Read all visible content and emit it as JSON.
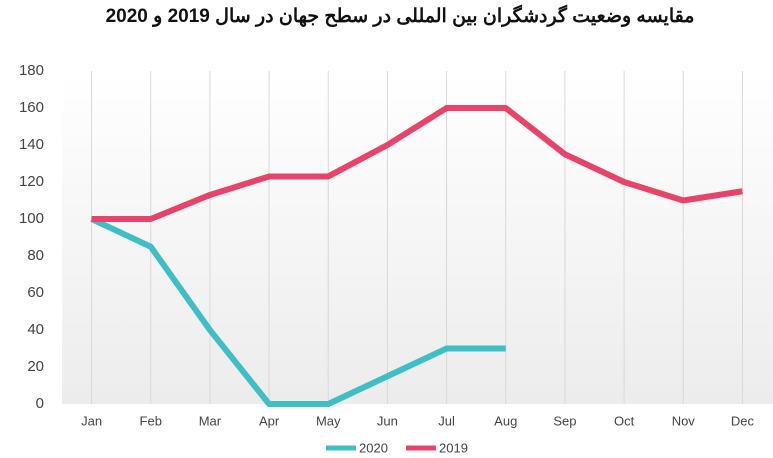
{
  "chart_data": {
    "type": "line",
    "title": "مقایسه وضعیت گردشگران بین المللی در سطح جهان در سال 2019 و 2020",
    "categories": [
      "Jan",
      "Feb",
      "Mar",
      "Apr",
      "May",
      "Jun",
      "Jul",
      "Aug",
      "Sep",
      "Oct",
      "Nov",
      "Dec"
    ],
    "series": [
      {
        "name": "2020",
        "color": "#3fbfc4",
        "values": [
          100,
          85,
          40,
          0,
          0,
          15,
          30,
          30,
          null,
          null,
          null,
          null
        ]
      },
      {
        "name": "2019",
        "color": "#e8436a",
        "values": [
          100,
          100,
          113,
          123,
          123,
          140,
          160,
          160,
          135,
          120,
          110,
          115
        ]
      }
    ],
    "ylim": [
      0,
      180
    ],
    "yticks": [
      0,
      20,
      40,
      60,
      80,
      100,
      120,
      140,
      160,
      180
    ],
    "grid": true,
    "legend": "bottom"
  }
}
